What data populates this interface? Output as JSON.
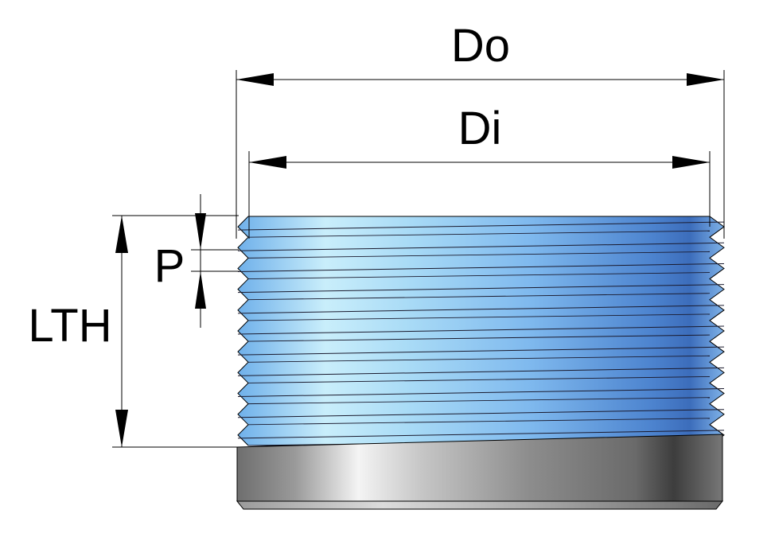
{
  "labels": {
    "outer_diameter": "Do",
    "inner_diameter": "Di",
    "pitch": "P",
    "thread_length": "LTH"
  },
  "colors": {
    "thread_light": "#d2f3fb",
    "thread_mid": "#8fc6ef",
    "thread_dark": "#2f5fa8",
    "body_light": "#f2f2f2",
    "body_mid": "#8c8c8c",
    "body_dark": "#3a3a3a",
    "line": "#000000"
  },
  "thread_count": 11
}
